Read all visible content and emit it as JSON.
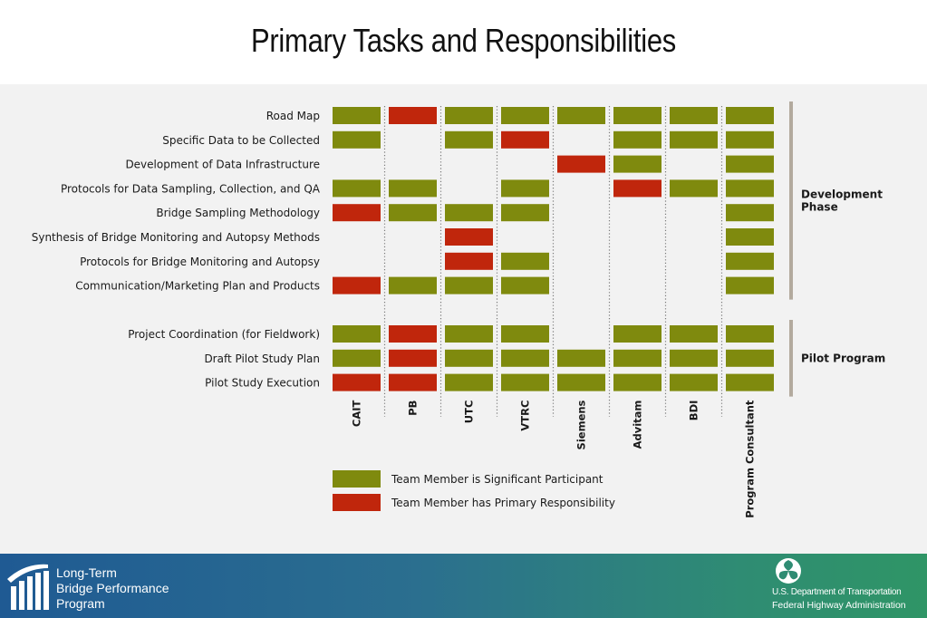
{
  "title": "Primary Tasks and Responsibilities",
  "chart_data": {
    "type": "table",
    "columns": [
      "CAIT",
      "PB",
      "UTC",
      "VTRC",
      "Siemens",
      "Advitam",
      "BDI",
      "Program Consultant"
    ],
    "rows": [
      {
        "task": "Road Map",
        "cells": [
          "S",
          "P",
          "S",
          "S",
          "S",
          "S",
          "S",
          "S"
        ]
      },
      {
        "task": "Specific Data to be Collected",
        "cells": [
          "S",
          "",
          "S",
          "P",
          "",
          "S",
          "S",
          "S"
        ]
      },
      {
        "task": "Development of Data Infrastructure",
        "cells": [
          "",
          "",
          "",
          "",
          "P",
          "S",
          "",
          "S"
        ]
      },
      {
        "task": "Protocols for Data Sampling, Collection, and QA",
        "cells": [
          "S",
          "S",
          "",
          "S",
          "",
          "P",
          "S",
          "S"
        ]
      },
      {
        "task": "Bridge Sampling Methodology",
        "cells": [
          "P",
          "S",
          "S",
          "S",
          "",
          "",
          "",
          "S"
        ]
      },
      {
        "task": "Synthesis of Bridge Monitoring and Autopsy Methods",
        "cells": [
          "",
          "",
          "P",
          "",
          "",
          "",
          "",
          "S"
        ]
      },
      {
        "task": "Protocols for Bridge Monitoring and Autopsy",
        "cells": [
          "",
          "",
          "P",
          "S",
          "",
          "",
          "",
          "S"
        ]
      },
      {
        "task": "Communication/Marketing Plan and Products",
        "cells": [
          "P",
          "S",
          "S",
          "S",
          "",
          "",
          "",
          "S"
        ]
      },
      {
        "task": "Project Coordination (for Fieldwork)",
        "cells": [
          "S",
          "P",
          "S",
          "S",
          "",
          "S",
          "S",
          "S"
        ]
      },
      {
        "task": "Draft Pilot Study Plan",
        "cells": [
          "S",
          "P",
          "S",
          "S",
          "S",
          "S",
          "S",
          "S"
        ]
      },
      {
        "task": "Pilot Study Execution",
        "cells": [
          "P",
          "P",
          "S",
          "S",
          "S",
          "S",
          "S",
          "S"
        ]
      }
    ],
    "phases": [
      {
        "label": "Development Phase",
        "rows": [
          0,
          7
        ]
      },
      {
        "label": "Pilot Program",
        "rows": [
          8,
          10
        ]
      }
    ],
    "legend": [
      {
        "code": "S",
        "label": "Team Member is Significant Participant"
      },
      {
        "code": "P",
        "label": "Team Member has Primary Responsibility"
      }
    ],
    "colors": {
      "S": "#7f8a0e",
      "P": "#c0260c",
      "phase_bar": "#b3aa9e",
      "separator": "#7a7a7a"
    }
  },
  "footer": {
    "program_lines": [
      "Long-Term",
      "Bridge Performance",
      "Program"
    ],
    "dot_line": "U.S. Department of Transportation",
    "fhwa_line": "Federal Highway Administration"
  }
}
